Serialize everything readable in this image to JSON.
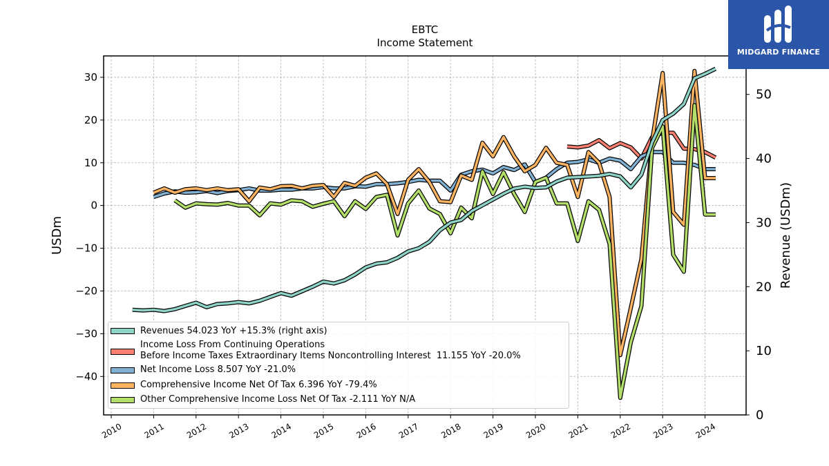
{
  "chart_data": {
    "type": "line",
    "title": "EBTC",
    "subtitle": "Income Statement",
    "ylabel": "USDm",
    "y2label": "Revenue (USDm)",
    "ylim": [
      -49,
      35
    ],
    "y2lim": [
      0,
      56
    ],
    "yticks": [
      30,
      20,
      10,
      0,
      -10,
      -20,
      -30,
      -40
    ],
    "y2ticks": [
      50,
      40,
      30,
      20,
      10,
      0
    ],
    "xticks": [
      "2010",
      "2011",
      "2012",
      "2013",
      "2014",
      "2015",
      "2016",
      "2017",
      "2018",
      "2019",
      "2020",
      "2021",
      "2022",
      "2023",
      "2024"
    ],
    "grid": true,
    "legend_position": "lower-left",
    "series": [
      {
        "name": "Revenues",
        "legend": "Revenues  54.023 YoY +15.3% (right axis)",
        "axis": "right",
        "color": "#8dd3c7",
        "x": [
          2010.5,
          2010.75,
          2011.0,
          2011.25,
          2011.5,
          2011.75,
          2012.0,
          2012.25,
          2012.5,
          2012.75,
          2013.0,
          2013.25,
          2013.5,
          2013.75,
          2014.0,
          2014.25,
          2014.5,
          2014.75,
          2015.0,
          2015.25,
          2015.5,
          2015.75,
          2016.0,
          2016.25,
          2016.5,
          2016.75,
          2017.0,
          2017.25,
          2017.5,
          2017.75,
          2018.0,
          2018.25,
          2018.5,
          2018.75,
          2019.0,
          2019.25,
          2019.5,
          2019.75,
          2020.0,
          2020.25,
          2020.5,
          2020.75,
          2021.0,
          2021.25,
          2021.5,
          2021.75,
          2022.0,
          2022.25,
          2022.5,
          2022.75,
          2023.0,
          2023.25,
          2023.5,
          2023.75,
          2024.0,
          2024.25
        ],
        "values": [
          16.4,
          16.3,
          16.4,
          16.2,
          16.5,
          17.0,
          17.5,
          16.8,
          17.3,
          17.4,
          17.6,
          17.4,
          17.8,
          18.4,
          19.0,
          18.6,
          19.3,
          20.0,
          20.8,
          20.5,
          21.0,
          21.9,
          23.0,
          23.6,
          23.8,
          24.5,
          25.5,
          26.0,
          27.0,
          28.8,
          30.0,
          30.4,
          31.8,
          32.7,
          33.6,
          34.5,
          35.3,
          35.6,
          35.4,
          35.5,
          36.4,
          37.0,
          37.1,
          37.2,
          37.3,
          37.6,
          37.2,
          35.5,
          37.5,
          42.5,
          46.0,
          47.0,
          48.5,
          52.5,
          53.2,
          54.0
        ]
      },
      {
        "name": "Income Loss From Continuing Operations Before Income Taxes Extraordinary Items Noncontrolling Interest",
        "legend": "Income Loss From Continuing Operations\nBefore Income Taxes Extraordinary Items Noncontrolling Interest  11.155 YoY -20.0%",
        "axis": "left",
        "color": "#fb8072",
        "x": [
          2020.75,
          2021.0,
          2021.25,
          2021.5,
          2021.75,
          2022.0,
          2022.25,
          2022.5,
          2022.75,
          2023.0,
          2023.25,
          2023.5,
          2023.75,
          2024.0,
          2024.25
        ],
        "values": [
          13.8,
          13.6,
          14.0,
          15.3,
          13.4,
          14.6,
          13.6,
          11.0,
          16.0,
          17.0,
          17.0,
          13.3,
          13.2,
          12.5,
          11.2
        ]
      },
      {
        "name": "Net Income Loss",
        "legend": "Net Income Loss  8.507 YoY -21.0%",
        "axis": "left",
        "color": "#80b1d3",
        "x": [
          2011.0,
          2011.25,
          2011.5,
          2011.75,
          2012.0,
          2012.25,
          2012.5,
          2012.75,
          2013.0,
          2013.25,
          2013.5,
          2013.75,
          2014.0,
          2014.25,
          2014.5,
          2014.75,
          2015.0,
          2015.25,
          2015.5,
          2015.75,
          2016.0,
          2016.25,
          2016.5,
          2016.75,
          2017.0,
          2017.25,
          2017.5,
          2017.75,
          2018.0,
          2018.25,
          2018.5,
          2018.75,
          2019.0,
          2019.25,
          2019.5,
          2019.75,
          2020.0,
          2020.25,
          2020.5,
          2020.75,
          2021.0,
          2021.25,
          2021.5,
          2021.75,
          2022.0,
          2022.25,
          2022.5,
          2022.75,
          2023.0,
          2023.25,
          2023.5,
          2023.75,
          2024.0,
          2024.25
        ],
        "values": [
          2.0,
          2.8,
          3.3,
          3.0,
          3.1,
          3.4,
          2.9,
          3.4,
          3.6,
          4.0,
          3.5,
          3.5,
          3.7,
          3.7,
          4.0,
          4.0,
          4.3,
          4.0,
          4.0,
          4.5,
          4.4,
          5.0,
          5.0,
          5.2,
          5.5,
          6.0,
          5.8,
          5.8,
          3.5,
          7.2,
          8.0,
          8.4,
          7.5,
          9.0,
          8.3,
          9.6,
          5.5,
          6.5,
          8.5,
          10.0,
          10.2,
          10.8,
          10.0,
          11.0,
          10.5,
          8.5,
          11.5,
          12.5,
          12.5,
          10.0,
          10.0,
          9.5,
          8.5,
          8.5
        ]
      },
      {
        "name": "Comprehensive Income Net Of Tax",
        "legend": "Comprehensive Income Net Of Tax  6.396 YoY -79.4%",
        "axis": "left",
        "color": "#fdb462",
        "x": [
          2011.0,
          2011.25,
          2011.5,
          2011.75,
          2012.0,
          2012.25,
          2012.5,
          2012.75,
          2013.0,
          2013.25,
          2013.5,
          2013.75,
          2014.0,
          2014.25,
          2014.5,
          2014.75,
          2015.0,
          2015.25,
          2015.5,
          2015.75,
          2016.0,
          2016.25,
          2016.5,
          2016.75,
          2017.0,
          2017.25,
          2017.5,
          2017.75,
          2018.0,
          2018.25,
          2018.5,
          2018.75,
          2019.0,
          2019.25,
          2019.5,
          2019.75,
          2020.0,
          2020.25,
          2020.5,
          2020.75,
          2021.0,
          2021.25,
          2021.5,
          2021.75,
          2022.0,
          2022.25,
          2022.5,
          2022.75,
          2023.0,
          2023.25,
          2023.5,
          2023.75,
          2024.0,
          2024.25
        ],
        "values": [
          3.0,
          4.0,
          3.0,
          3.8,
          4.0,
          3.6,
          4.0,
          3.6,
          3.8,
          1.0,
          4.2,
          3.8,
          4.5,
          4.6,
          4.0,
          4.6,
          4.8,
          2.0,
          5.3,
          4.6,
          6.5,
          7.5,
          5.0,
          -2.0,
          6.0,
          8.5,
          5.5,
          1.0,
          0.8,
          7.0,
          6.0,
          14.7,
          11.5,
          16.0,
          11.5,
          8.0,
          9.5,
          13.5,
          10.0,
          9.5,
          2.0,
          12.5,
          10.0,
          2.0,
          -35.0,
          -24.0,
          -12.5,
          15.0,
          31.0,
          -1.5,
          -4.5,
          31.5,
          6.4,
          6.4
        ]
      },
      {
        "name": "Other Comprehensive Income Loss Net Of Tax",
        "legend": "Other Comprehensive Income Loss Net Of Tax  -2.111 YoY N/A",
        "axis": "left",
        "color": "#b3de69",
        "x": [
          2011.5,
          2011.75,
          2012.0,
          2012.25,
          2012.5,
          2012.75,
          2013.0,
          2013.25,
          2013.5,
          2013.75,
          2014.0,
          2014.25,
          2014.5,
          2014.75,
          2015.0,
          2015.25,
          2015.5,
          2015.75,
          2016.0,
          2016.25,
          2016.5,
          2016.75,
          2017.0,
          2017.25,
          2017.5,
          2017.75,
          2018.0,
          2018.25,
          2018.5,
          2018.75,
          2019.0,
          2019.25,
          2019.5,
          2019.75,
          2020.0,
          2020.25,
          2020.5,
          2020.75,
          2021.0,
          2021.25,
          2021.5,
          2021.75,
          2022.0,
          2022.25,
          2022.5,
          2022.75,
          2023.0,
          2023.25,
          2023.5,
          2023.75,
          2024.0,
          2024.25
        ],
        "values": [
          1.2,
          -0.5,
          0.5,
          0.3,
          0.2,
          0.6,
          0.0,
          0.0,
          -2.3,
          0.5,
          0.2,
          1.2,
          1.0,
          -0.3,
          0.4,
          1.0,
          -2.5,
          1.0,
          -0.8,
          2.0,
          2.5,
          -7.0,
          0.5,
          3.5,
          -0.7,
          -2.0,
          -6.5,
          -0.5,
          -3.0,
          8.0,
          2.7,
          7.8,
          2.7,
          -1.5,
          5.5,
          6.5,
          0.5,
          0.5,
          -8.3,
          1.0,
          -1.0,
          -9.0,
          -45.0,
          -32.0,
          -23.5,
          13.5,
          18.5,
          -11.5,
          -15.5,
          23.5,
          -2.1,
          -2.1
        ]
      }
    ]
  },
  "logo": {
    "text": "MIDGARD FINANCE"
  }
}
